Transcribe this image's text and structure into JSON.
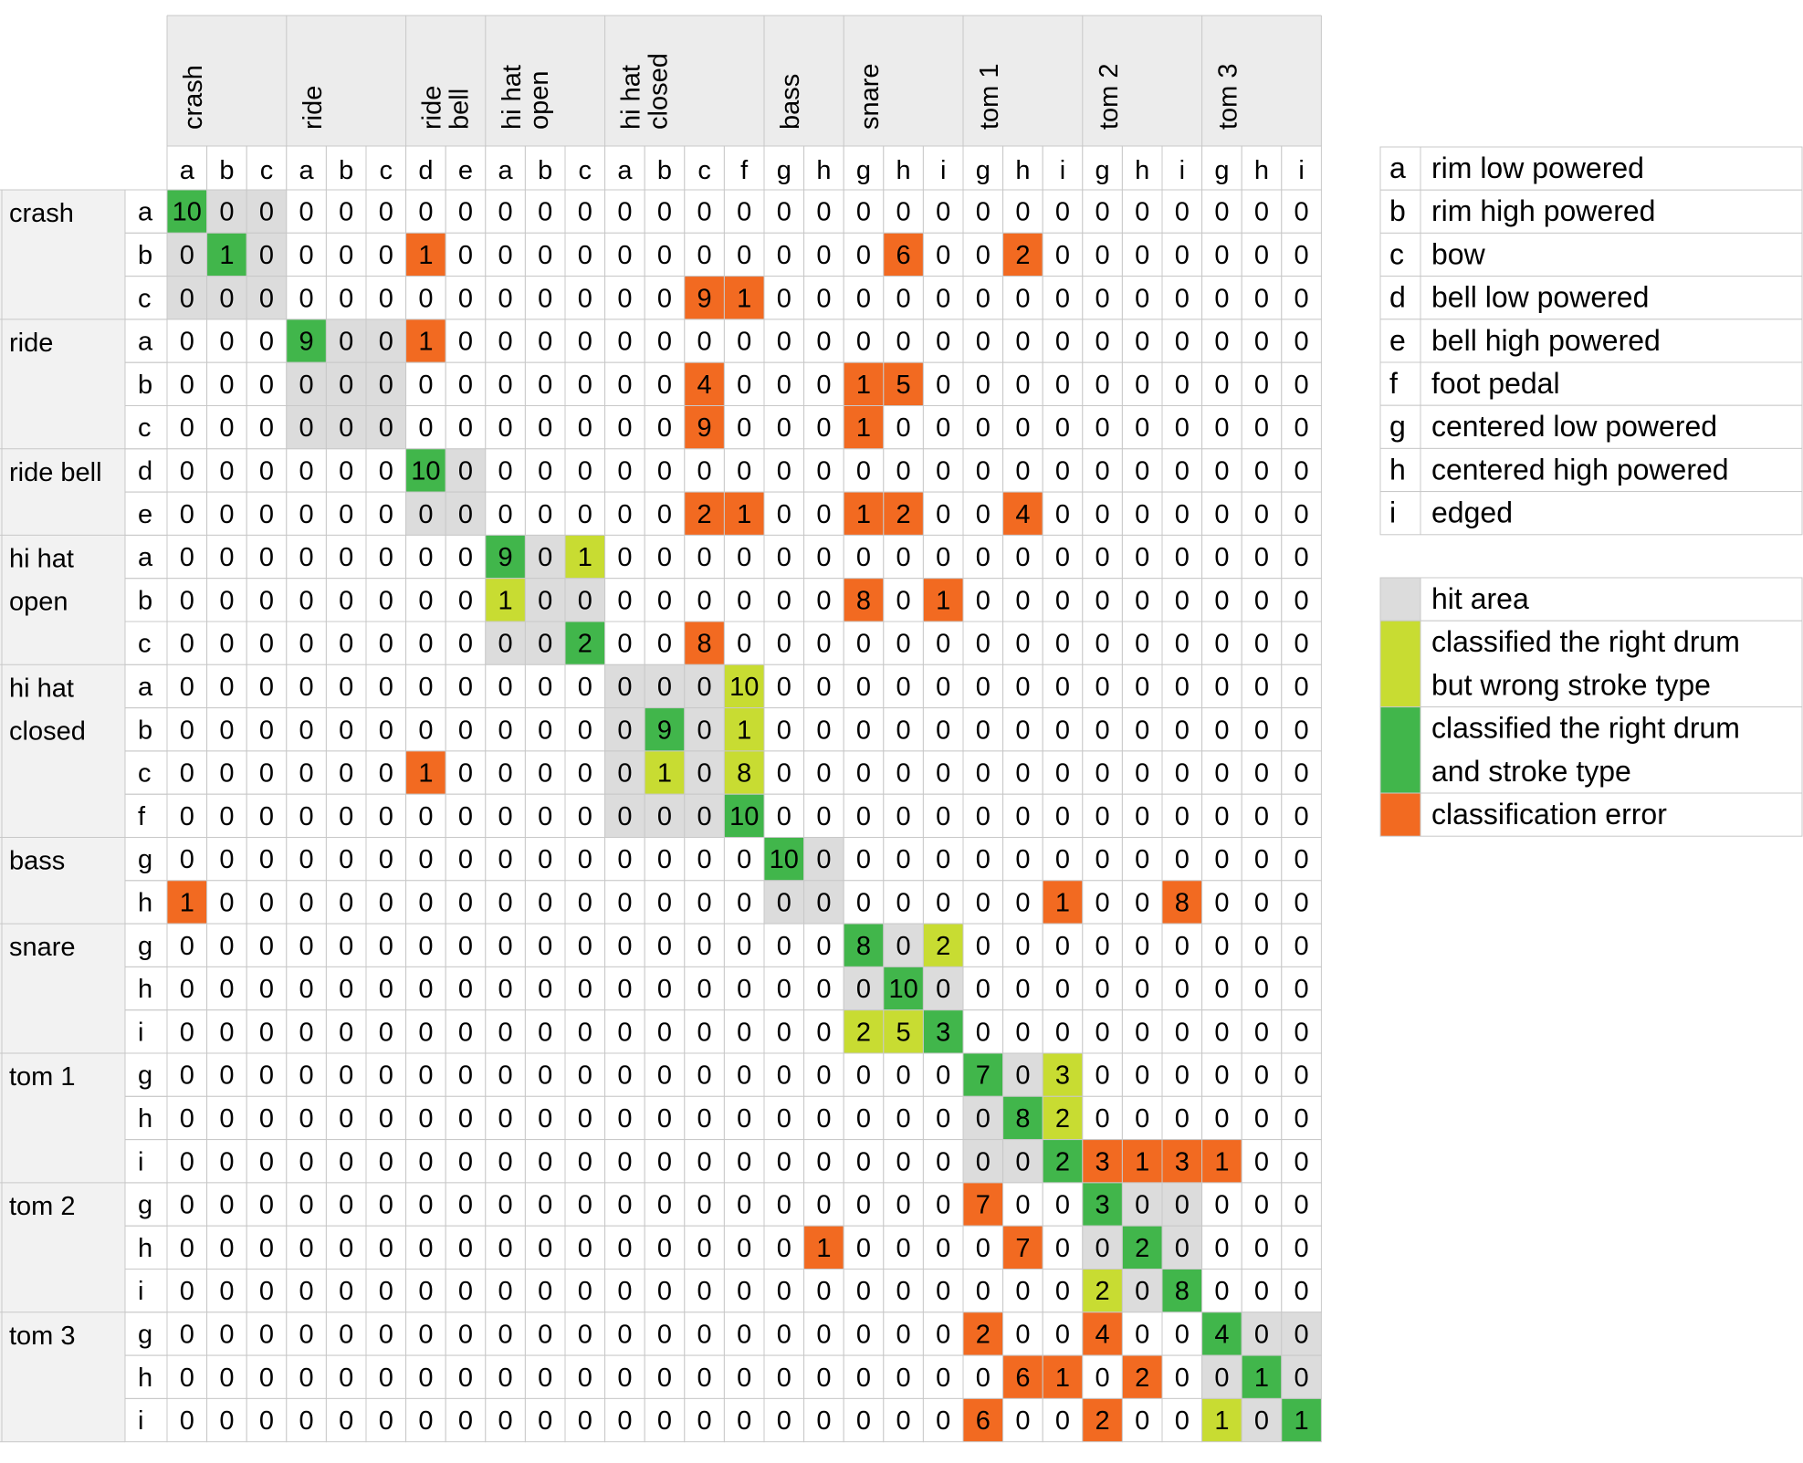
{
  "chart_data": {
    "type": "heatmap",
    "column_groups": [
      {
        "name": "crash",
        "lines": [
          "crash"
        ],
        "subs": [
          "a",
          "b",
          "c"
        ]
      },
      {
        "name": "ride",
        "lines": [
          "ride"
        ],
        "subs": [
          "a",
          "b",
          "c"
        ]
      },
      {
        "name": "ride bell",
        "lines": [
          "ride",
          "bell"
        ],
        "subs": [
          "d",
          "e"
        ]
      },
      {
        "name": "hi hat open",
        "lines": [
          "hi hat",
          "open"
        ],
        "subs": [
          "a",
          "b",
          "c"
        ]
      },
      {
        "name": "hi hat closed",
        "lines": [
          "hi hat",
          "closed"
        ],
        "subs": [
          "a",
          "b",
          "c",
          "f"
        ]
      },
      {
        "name": "bass",
        "lines": [
          "bass"
        ],
        "subs": [
          "g",
          "h"
        ]
      },
      {
        "name": "snare",
        "lines": [
          "snare"
        ],
        "subs": [
          "g",
          "h",
          "i"
        ]
      },
      {
        "name": "tom 1",
        "lines": [
          "tom 1"
        ],
        "subs": [
          "g",
          "h",
          "i"
        ]
      },
      {
        "name": "tom 2",
        "lines": [
          "tom 2"
        ],
        "subs": [
          "g",
          "h",
          "i"
        ]
      },
      {
        "name": "tom 3",
        "lines": [
          "tom 3"
        ],
        "subs": [
          "g",
          "h",
          "i"
        ]
      }
    ],
    "row_groups": [
      {
        "name": "crash",
        "lines": [
          "crash"
        ],
        "subs": [
          "a",
          "b",
          "c"
        ]
      },
      {
        "name": "ride",
        "lines": [
          "ride"
        ],
        "subs": [
          "a",
          "b",
          "c"
        ]
      },
      {
        "name": "ride bell",
        "lines": [
          "ride bell"
        ],
        "subs": [
          "d",
          "e"
        ]
      },
      {
        "name": "hi hat open",
        "lines": [
          "hi hat",
          "open"
        ],
        "subs": [
          "a",
          "b",
          "c"
        ]
      },
      {
        "name": "hi hat closed",
        "lines": [
          "hi hat",
          "closed"
        ],
        "subs": [
          "a",
          "b",
          "c",
          "f"
        ]
      },
      {
        "name": "bass",
        "lines": [
          "bass"
        ],
        "subs": [
          "g",
          "h"
        ]
      },
      {
        "name": "snare",
        "lines": [
          "snare"
        ],
        "subs": [
          "g",
          "h",
          "i"
        ]
      },
      {
        "name": "tom 1",
        "lines": [
          "tom 1"
        ],
        "subs": [
          "g",
          "h",
          "i"
        ]
      },
      {
        "name": "tom 2",
        "lines": [
          "tom 2"
        ],
        "subs": [
          "g",
          "h",
          "i"
        ]
      },
      {
        "name": "tom 3",
        "lines": [
          "tom 3"
        ],
        "subs": [
          "g",
          "h",
          "i"
        ]
      }
    ],
    "values": [
      [
        10,
        0,
        0,
        0,
        0,
        0,
        0,
        0,
        0,
        0,
        0,
        0,
        0,
        0,
        0,
        0,
        0,
        0,
        0,
        0,
        0,
        0,
        0,
        0,
        0,
        0,
        0,
        0,
        0
      ],
      [
        0,
        1,
        0,
        0,
        0,
        0,
        1,
        0,
        0,
        0,
        0,
        0,
        0,
        0,
        0,
        0,
        0,
        0,
        6,
        0,
        0,
        2,
        0,
        0,
        0,
        0,
        0,
        0,
        0
      ],
      [
        0,
        0,
        0,
        0,
        0,
        0,
        0,
        0,
        0,
        0,
        0,
        0,
        0,
        9,
        1,
        0,
        0,
        0,
        0,
        0,
        0,
        0,
        0,
        0,
        0,
        0,
        0,
        0,
        0
      ],
      [
        0,
        0,
        0,
        9,
        0,
        0,
        1,
        0,
        0,
        0,
        0,
        0,
        0,
        0,
        0,
        0,
        0,
        0,
        0,
        0,
        0,
        0,
        0,
        0,
        0,
        0,
        0,
        0,
        0
      ],
      [
        0,
        0,
        0,
        0,
        0,
        0,
        0,
        0,
        0,
        0,
        0,
        0,
        0,
        4,
        0,
        0,
        0,
        1,
        5,
        0,
        0,
        0,
        0,
        0,
        0,
        0,
        0,
        0,
        0
      ],
      [
        0,
        0,
        0,
        0,
        0,
        0,
        0,
        0,
        0,
        0,
        0,
        0,
        0,
        9,
        0,
        0,
        0,
        1,
        0,
        0,
        0,
        0,
        0,
        0,
        0,
        0,
        0,
        0,
        0
      ],
      [
        0,
        0,
        0,
        0,
        0,
        0,
        10,
        0,
        0,
        0,
        0,
        0,
        0,
        0,
        0,
        0,
        0,
        0,
        0,
        0,
        0,
        0,
        0,
        0,
        0,
        0,
        0,
        0,
        0
      ],
      [
        0,
        0,
        0,
        0,
        0,
        0,
        0,
        0,
        0,
        0,
        0,
        0,
        0,
        2,
        1,
        0,
        0,
        1,
        2,
        0,
        0,
        4,
        0,
        0,
        0,
        0,
        0,
        0,
        0
      ],
      [
        0,
        0,
        0,
        0,
        0,
        0,
        0,
        0,
        9,
        0,
        1,
        0,
        0,
        0,
        0,
        0,
        0,
        0,
        0,
        0,
        0,
        0,
        0,
        0,
        0,
        0,
        0,
        0,
        0
      ],
      [
        0,
        0,
        0,
        0,
        0,
        0,
        0,
        0,
        1,
        0,
        0,
        0,
        0,
        0,
        0,
        0,
        0,
        8,
        0,
        1,
        0,
        0,
        0,
        0,
        0,
        0,
        0,
        0,
        0
      ],
      [
        0,
        0,
        0,
        0,
        0,
        0,
        0,
        0,
        0,
        0,
        2,
        0,
        0,
        8,
        0,
        0,
        0,
        0,
        0,
        0,
        0,
        0,
        0,
        0,
        0,
        0,
        0,
        0,
        0
      ],
      [
        0,
        0,
        0,
        0,
        0,
        0,
        0,
        0,
        0,
        0,
        0,
        0,
        0,
        0,
        10,
        0,
        0,
        0,
        0,
        0,
        0,
        0,
        0,
        0,
        0,
        0,
        0,
        0,
        0
      ],
      [
        0,
        0,
        0,
        0,
        0,
        0,
        0,
        0,
        0,
        0,
        0,
        0,
        9,
        0,
        1,
        0,
        0,
        0,
        0,
        0,
        0,
        0,
        0,
        0,
        0,
        0,
        0,
        0,
        0
      ],
      [
        0,
        0,
        0,
        0,
        0,
        0,
        1,
        0,
        0,
        0,
        0,
        0,
        1,
        0,
        8,
        0,
        0,
        0,
        0,
        0,
        0,
        0,
        0,
        0,
        0,
        0,
        0,
        0,
        0
      ],
      [
        0,
        0,
        0,
        0,
        0,
        0,
        0,
        0,
        0,
        0,
        0,
        0,
        0,
        0,
        10,
        0,
        0,
        0,
        0,
        0,
        0,
        0,
        0,
        0,
        0,
        0,
        0,
        0,
        0
      ],
      [
        0,
        0,
        0,
        0,
        0,
        0,
        0,
        0,
        0,
        0,
        0,
        0,
        0,
        0,
        0,
        10,
        0,
        0,
        0,
        0,
        0,
        0,
        0,
        0,
        0,
        0,
        0,
        0,
        0
      ],
      [
        1,
        0,
        0,
        0,
        0,
        0,
        0,
        0,
        0,
        0,
        0,
        0,
        0,
        0,
        0,
        0,
        0,
        0,
        0,
        0,
        0,
        0,
        1,
        0,
        0,
        8,
        0,
        0,
        0
      ],
      [
        0,
        0,
        0,
        0,
        0,
        0,
        0,
        0,
        0,
        0,
        0,
        0,
        0,
        0,
        0,
        0,
        0,
        8,
        0,
        2,
        0,
        0,
        0,
        0,
        0,
        0,
        0,
        0,
        0
      ],
      [
        0,
        0,
        0,
        0,
        0,
        0,
        0,
        0,
        0,
        0,
        0,
        0,
        0,
        0,
        0,
        0,
        0,
        0,
        10,
        0,
        0,
        0,
        0,
        0,
        0,
        0,
        0,
        0,
        0
      ],
      [
        0,
        0,
        0,
        0,
        0,
        0,
        0,
        0,
        0,
        0,
        0,
        0,
        0,
        0,
        0,
        0,
        0,
        2,
        5,
        3,
        0,
        0,
        0,
        0,
        0,
        0,
        0,
        0,
        0
      ],
      [
        0,
        0,
        0,
        0,
        0,
        0,
        0,
        0,
        0,
        0,
        0,
        0,
        0,
        0,
        0,
        0,
        0,
        0,
        0,
        0,
        7,
        0,
        3,
        0,
        0,
        0,
        0,
        0,
        0
      ],
      [
        0,
        0,
        0,
        0,
        0,
        0,
        0,
        0,
        0,
        0,
        0,
        0,
        0,
        0,
        0,
        0,
        0,
        0,
        0,
        0,
        0,
        8,
        2,
        0,
        0,
        0,
        0,
        0,
        0
      ],
      [
        0,
        0,
        0,
        0,
        0,
        0,
        0,
        0,
        0,
        0,
        0,
        0,
        0,
        0,
        0,
        0,
        0,
        0,
        0,
        0,
        0,
        0,
        2,
        3,
        1,
        3,
        1,
        0,
        0
      ],
      [
        0,
        0,
        0,
        0,
        0,
        0,
        0,
        0,
        0,
        0,
        0,
        0,
        0,
        0,
        0,
        0,
        0,
        0,
        0,
        0,
        7,
        0,
        0,
        3,
        0,
        0,
        0,
        0,
        0
      ],
      [
        0,
        0,
        0,
        0,
        0,
        0,
        0,
        0,
        0,
        0,
        0,
        0,
        0,
        0,
        0,
        0,
        1,
        0,
        0,
        0,
        0,
        7,
        0,
        0,
        2,
        0,
        0,
        0,
        0
      ],
      [
        0,
        0,
        0,
        0,
        0,
        0,
        0,
        0,
        0,
        0,
        0,
        0,
        0,
        0,
        0,
        0,
        0,
        0,
        0,
        0,
        0,
        0,
        0,
        2,
        0,
        8,
        0,
        0,
        0
      ],
      [
        0,
        0,
        0,
        0,
        0,
        0,
        0,
        0,
        0,
        0,
        0,
        0,
        0,
        0,
        0,
        0,
        0,
        0,
        0,
        0,
        2,
        0,
        0,
        4,
        0,
        0,
        4,
        0,
        0
      ],
      [
        0,
        0,
        0,
        0,
        0,
        0,
        0,
        0,
        0,
        0,
        0,
        0,
        0,
        0,
        0,
        0,
        0,
        0,
        0,
        0,
        0,
        6,
        1,
        0,
        2,
        0,
        0,
        1,
        0
      ],
      [
        0,
        0,
        0,
        0,
        0,
        0,
        0,
        0,
        0,
        0,
        0,
        0,
        0,
        0,
        0,
        0,
        0,
        0,
        0,
        0,
        6,
        0,
        0,
        2,
        0,
        0,
        1,
        0,
        1
      ]
    ],
    "cell_classes": [
      "GGLLLLEL...................................E.....L.....",
      "LLGLLLLL..........E......E...................................................",
      "LLL..............................EE................."
    ],
    "colors": {
      "hit_area": "#dcdcdc",
      "right_drum_wrong_stroke": "#c8dc32",
      "right_drum_right_stroke": "#41b64b",
      "classification_error": "#f26a21",
      "grid": "#c8c8c8"
    },
    "stroke_legend": [
      {
        "key": "a",
        "label": "rim low powered"
      },
      {
        "key": "b",
        "label": "rim high powered"
      },
      {
        "key": "c",
        "label": "bow"
      },
      {
        "key": "d",
        "label": "bell low powered"
      },
      {
        "key": "e",
        "label": "bell high powered"
      },
      {
        "key": "f",
        "label": "foot pedal"
      },
      {
        "key": "g",
        "label": "centered low powered"
      },
      {
        "key": "h",
        "label": "centered high powered"
      },
      {
        "key": "i",
        "label": "edged"
      }
    ],
    "color_legend": [
      {
        "key": "hit_area",
        "lines": [
          "hit area"
        ]
      },
      {
        "key": "right_drum_wrong_stroke",
        "lines": [
          "classified the right drum",
          "but wrong stroke type"
        ]
      },
      {
        "key": "right_drum_right_stroke",
        "lines": [
          "classified the right drum",
          "and stroke type"
        ]
      },
      {
        "key": "classification_error",
        "lines": [
          "classification error"
        ]
      }
    ]
  }
}
